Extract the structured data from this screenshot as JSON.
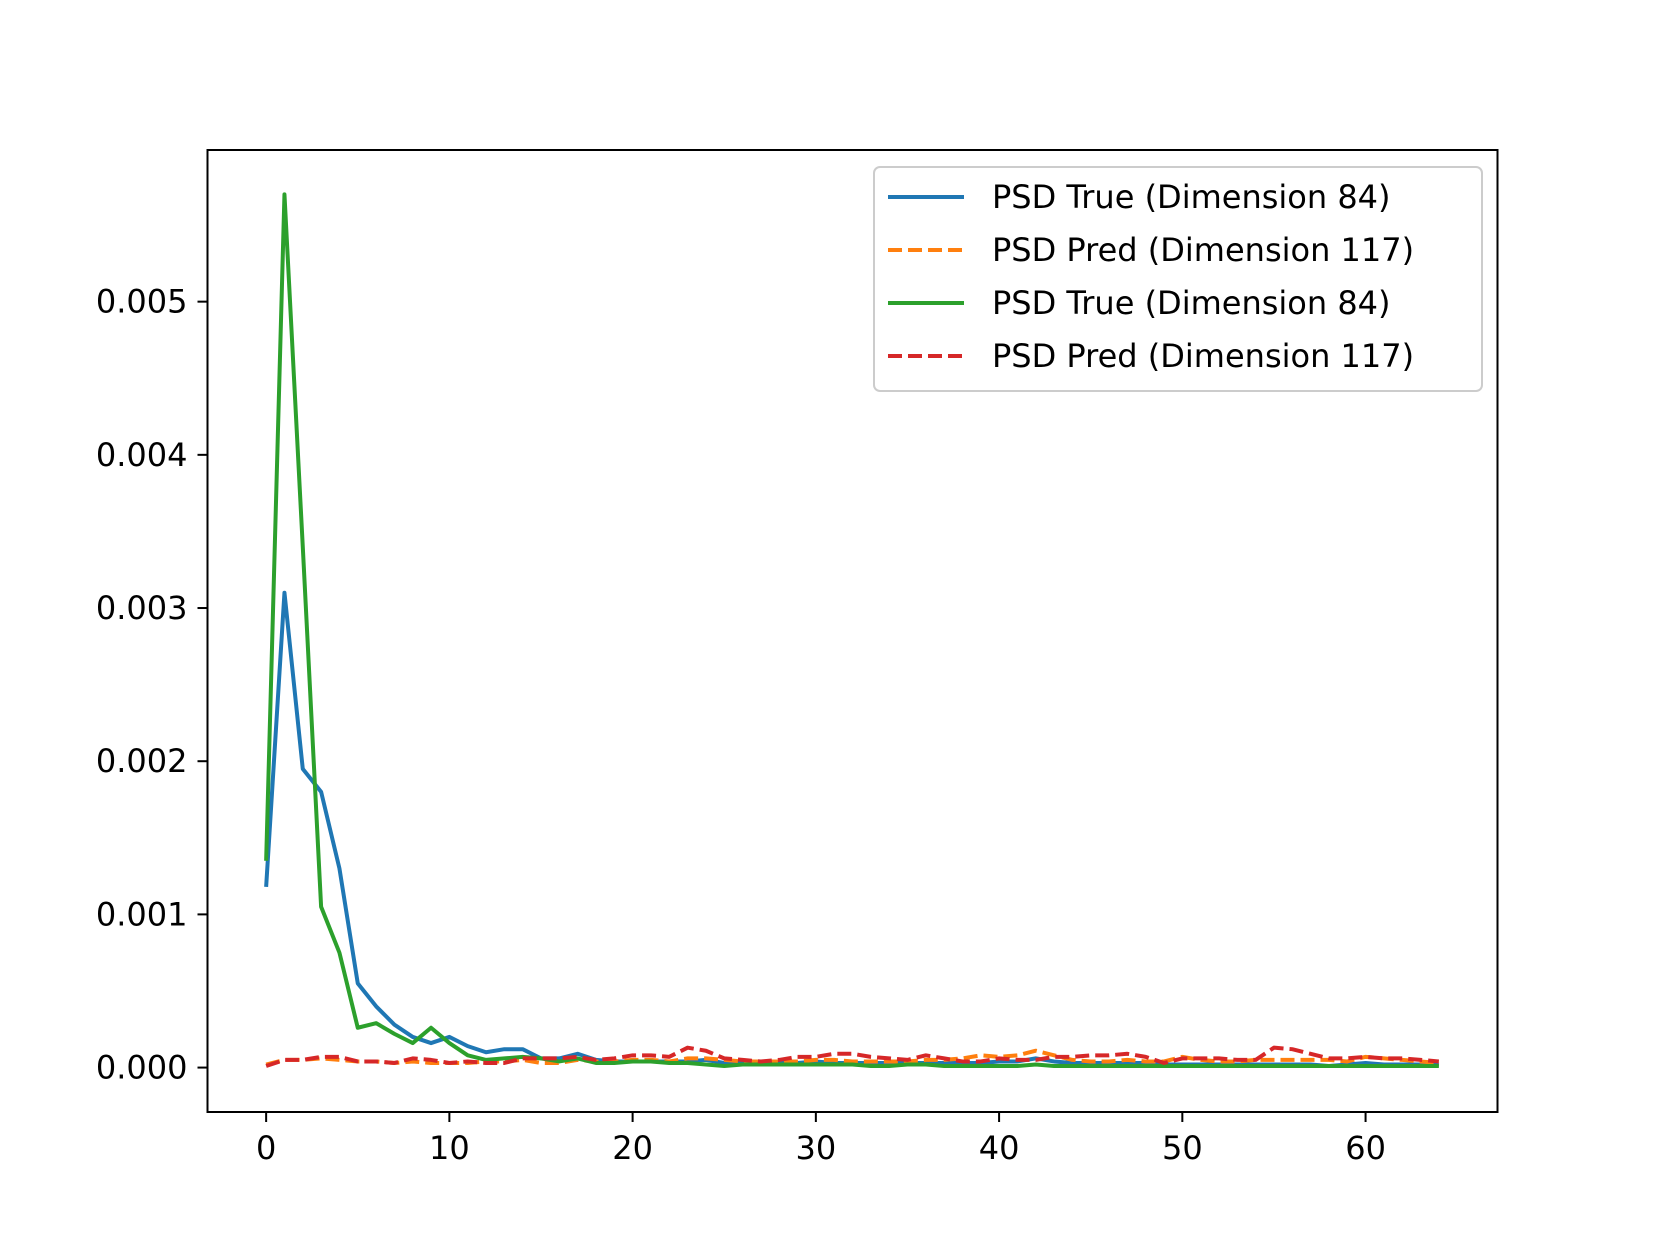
{
  "chart_data": {
    "type": "line",
    "title": "",
    "xlabel": "",
    "ylabel": "",
    "xlim": [
      -3.2,
      67.2
    ],
    "ylim": [
      -0.00029,
      0.00599
    ],
    "xticks": [
      0,
      10,
      20,
      30,
      40,
      50,
      60
    ],
    "xtick_labels": [
      "0",
      "10",
      "20",
      "30",
      "40",
      "50",
      "60"
    ],
    "yticks": [
      0.0,
      0.001,
      0.002,
      0.003,
      0.004,
      0.005
    ],
    "ytick_labels": [
      "0.000",
      "0.001",
      "0.002",
      "0.003",
      "0.004",
      "0.005"
    ],
    "grid": false,
    "legend_position": "top-right",
    "x": [
      0,
      1,
      2,
      3,
      4,
      5,
      6,
      7,
      8,
      9,
      10,
      11,
      12,
      13,
      14,
      15,
      16,
      17,
      18,
      19,
      20,
      21,
      22,
      23,
      24,
      25,
      26,
      27,
      28,
      29,
      30,
      31,
      32,
      33,
      34,
      35,
      36,
      37,
      38,
      39,
      40,
      41,
      42,
      43,
      44,
      45,
      46,
      47,
      48,
      49,
      50,
      51,
      52,
      53,
      54,
      55,
      56,
      57,
      58,
      59,
      60,
      61,
      62,
      63,
      64
    ],
    "series": [
      {
        "name": "PSD True (Dimension 84)",
        "color": "#1f77b4",
        "dash": "solid",
        "values": [
          0.00118,
          0.0031,
          0.00195,
          0.0018,
          0.0013,
          0.00055,
          0.0004,
          0.00028,
          0.0002,
          0.00016,
          0.0002,
          0.00014,
          0.0001,
          0.00012,
          0.00012,
          6e-05,
          6e-05,
          9e-05,
          5e-05,
          4e-05,
          4e-05,
          4e-05,
          4e-05,
          4e-05,
          5e-05,
          3e-05,
          3e-05,
          3e-05,
          3e-05,
          3e-05,
          4e-05,
          3e-05,
          3e-05,
          3e-05,
          3e-05,
          3e-05,
          3e-05,
          3e-05,
          3e-05,
          3e-05,
          4e-05,
          4e-05,
          6e-05,
          4e-05,
          3e-05,
          3e-05,
          3e-05,
          3e-05,
          3e-05,
          2e-05,
          2e-05,
          2e-05,
          2e-05,
          2e-05,
          2e-05,
          2e-05,
          2e-05,
          2e-05,
          1e-05,
          2e-05,
          3e-05,
          2e-05,
          2e-05,
          2e-05,
          2e-05
        ]
      },
      {
        "name": "PSD Pred (Dimension 117)",
        "color": "#ff7f0e",
        "dash": "dashed",
        "values": [
          2e-05,
          5e-05,
          5e-05,
          6e-05,
          5e-05,
          4e-05,
          4e-05,
          3e-05,
          4e-05,
          3e-05,
          3e-05,
          3e-05,
          4e-05,
          4e-05,
          5e-05,
          3e-05,
          3e-05,
          5e-05,
          4e-05,
          4e-05,
          5e-05,
          5e-05,
          4e-05,
          6e-05,
          6e-05,
          5e-05,
          4e-05,
          4e-05,
          4e-05,
          4e-05,
          5e-05,
          5e-05,
          4e-05,
          4e-05,
          4e-05,
          4e-05,
          5e-05,
          5e-05,
          6e-05,
          8e-05,
          7e-05,
          8e-05,
          0.00011,
          8e-05,
          5e-05,
          4e-05,
          4e-05,
          5e-05,
          4e-05,
          4e-05,
          7e-05,
          5e-05,
          4e-05,
          4e-05,
          5e-05,
          5e-05,
          5e-05,
          5e-05,
          5e-05,
          4e-05,
          7e-05,
          6e-05,
          5e-05,
          4e-05,
          3e-05
        ]
      },
      {
        "name": "PSD True (Dimension 84)",
        "color": "#2ca02c",
        "dash": "solid",
        "values": [
          0.00135,
          0.0057,
          0.0034,
          0.00105,
          0.00075,
          0.00026,
          0.00029,
          0.00022,
          0.00016,
          0.00026,
          0.00016,
          8e-05,
          5e-05,
          6e-05,
          7e-05,
          6e-05,
          4e-05,
          6e-05,
          3e-05,
          3e-05,
          4e-05,
          4e-05,
          3e-05,
          3e-05,
          2e-05,
          1e-05,
          2e-05,
          2e-05,
          2e-05,
          2e-05,
          2e-05,
          2e-05,
          2e-05,
          1e-05,
          1e-05,
          2e-05,
          2e-05,
          1e-05,
          1e-05,
          1e-05,
          1e-05,
          1e-05,
          2e-05,
          1e-05,
          1e-05,
          1e-05,
          1e-05,
          1e-05,
          1e-05,
          1e-05,
          1e-05,
          1e-05,
          1e-05,
          1e-05,
          1e-05,
          1e-05,
          1e-05,
          1e-05,
          1e-05,
          1e-05,
          1e-05,
          1e-05,
          1e-05,
          1e-05,
          1e-05
        ]
      },
      {
        "name": "PSD Pred (Dimension 117)",
        "color": "#d62728",
        "dash": "dashed",
        "values": [
          1e-05,
          5e-05,
          5e-05,
          7e-05,
          7e-05,
          4e-05,
          4e-05,
          3e-05,
          6e-05,
          5e-05,
          3e-05,
          4e-05,
          3e-05,
          3e-05,
          6e-05,
          6e-05,
          6e-05,
          7e-05,
          5e-05,
          6e-05,
          8e-05,
          8e-05,
          7e-05,
          0.00013,
          0.00011,
          6e-05,
          5e-05,
          4e-05,
          5e-05,
          7e-05,
          7e-05,
          9e-05,
          9e-05,
          7e-05,
          6e-05,
          5e-05,
          8e-05,
          6e-05,
          4e-05,
          4e-05,
          6e-05,
          5e-05,
          5e-05,
          7e-05,
          7e-05,
          8e-05,
          8e-05,
          9e-05,
          7e-05,
          3e-05,
          6e-05,
          6e-05,
          6e-05,
          5e-05,
          5e-05,
          0.00013,
          0.00012,
          9e-05,
          6e-05,
          6e-05,
          7e-05,
          6e-05,
          6e-05,
          5e-05,
          4e-05
        ]
      }
    ]
  }
}
